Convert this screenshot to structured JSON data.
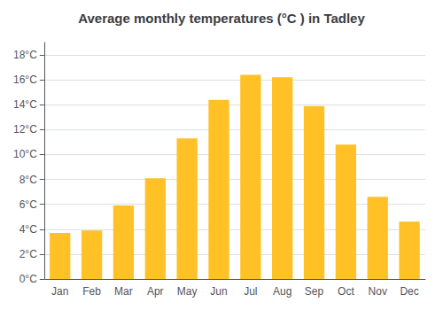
{
  "chart_data": {
    "type": "bar",
    "title": "Average monthly temperatures (°C ) in Tadley",
    "categories": [
      "Jan",
      "Feb",
      "Mar",
      "Apr",
      "May",
      "Jun",
      "Jul",
      "Aug",
      "Sep",
      "Oct",
      "Nov",
      "Dec"
    ],
    "values": [
      3.7,
      3.9,
      5.9,
      8.1,
      11.3,
      14.4,
      16.4,
      16.2,
      13.9,
      10.8,
      6.6,
      4.6
    ],
    "color": "#FFC125",
    "ylim": [
      0,
      19
    ],
    "yticks": [
      {
        "value": 0,
        "label": "0°C"
      },
      {
        "value": 2,
        "label": "2°C"
      },
      {
        "value": 4,
        "label": "4°C"
      },
      {
        "value": 6,
        "label": "6°C"
      },
      {
        "value": 8,
        "label": "8°C"
      },
      {
        "value": 10,
        "label": "10°C"
      },
      {
        "value": 12,
        "label": "12°C"
      },
      {
        "value": 14,
        "label": "14°C"
      },
      {
        "value": 16,
        "label": "16°C"
      },
      {
        "value": 18,
        "label": "18°C"
      }
    ],
    "grid": true
  }
}
